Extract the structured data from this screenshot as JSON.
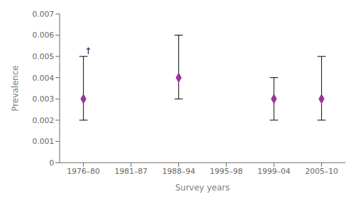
{
  "chart_data": {
    "type": "scatter",
    "categories": [
      "1976–80",
      "1981–87",
      "1988–94",
      "1995–98",
      "1999–04",
      "2005–10"
    ],
    "values": [
      0.003,
      null,
      0.004,
      null,
      0.003,
      0.003
    ],
    "error_low": [
      0.002,
      null,
      0.003,
      null,
      0.002,
      0.002
    ],
    "error_high": [
      0.005,
      null,
      0.006,
      null,
      0.004,
      0.005
    ],
    "color": "#993399",
    "marker": "diamond",
    "xlabel": "Survey years",
    "ylabel": "Prevalence",
    "ylim": [
      0,
      0.007
    ],
    "yticks": [
      0,
      0.001,
      0.002,
      0.003,
      0.004,
      0.005,
      0.006,
      0.007
    ],
    "annotations": [
      {
        "text": "†",
        "x": "1976–80",
        "y": 0.00515
      }
    ],
    "grid": false
  }
}
